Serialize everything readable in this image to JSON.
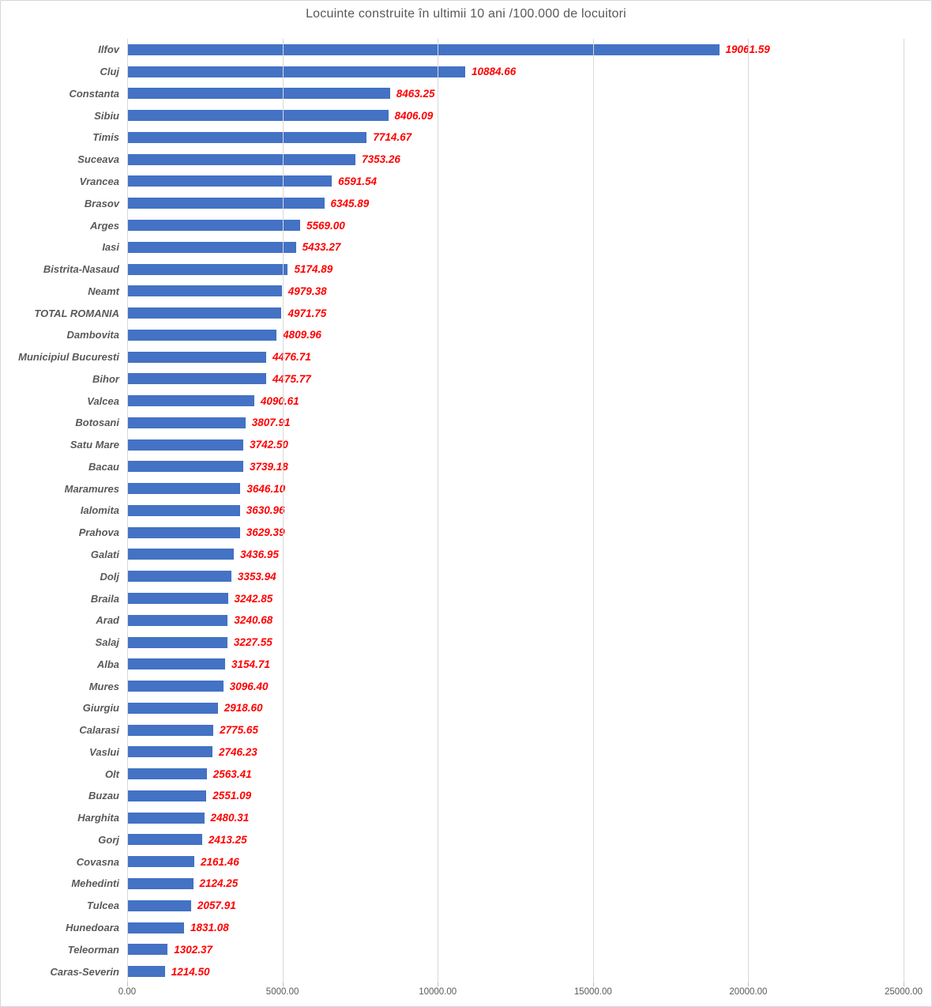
{
  "title": "Locuinte construite în ultimii 10 ani /100.000 de locuitori",
  "colors": {
    "bar": "#4472c4",
    "value_label": "#ff0000",
    "category_label": "#595959",
    "title_text": "#595959",
    "gridline": "#d9d9d9",
    "chart_border": "#d7d7d7"
  },
  "chart_data": {
    "type": "bar",
    "orientation": "horizontal",
    "title": "Locuinte construite în ultimii 10 ani /100.000 de locuitori",
    "xlabel": "",
    "ylabel": "",
    "xlim": [
      0,
      25000
    ],
    "grid": true,
    "x_ticks": [
      {
        "value": 0,
        "label": "0.00"
      },
      {
        "value": 5000,
        "label": "5000.00"
      },
      {
        "value": 10000,
        "label": "10000.00"
      },
      {
        "value": 15000,
        "label": "15000.00"
      },
      {
        "value": 20000,
        "label": "20000.00"
      },
      {
        "value": 25000,
        "label": "25000.00"
      }
    ],
    "categories": [
      "Ilfov",
      "Cluj",
      "Constanta",
      "Sibiu",
      "Timis",
      "Suceava",
      "Vrancea",
      "Brasov",
      "Arges",
      "Iasi",
      "Bistrita-Nasaud",
      "Neamt",
      "TOTAL ROMANIA",
      "Dambovita",
      "Municipiul Bucuresti",
      "Bihor",
      "Valcea",
      "Botosani",
      "Satu Mare",
      "Bacau",
      "Maramures",
      "Ialomita",
      "Prahova",
      "Galati",
      "Dolj",
      "Braila",
      "Arad",
      "Salaj",
      "Alba",
      "Mures",
      "Giurgiu",
      "Calarasi",
      "Vaslui",
      "Olt",
      "Buzau",
      "Harghita",
      "Gorj",
      "Covasna",
      "Mehedinti",
      "Tulcea",
      "Hunedoara",
      "Teleorman",
      "Caras-Severin"
    ],
    "values": [
      19061.59,
      10884.66,
      8463.25,
      8406.09,
      7714.67,
      7353.26,
      6591.54,
      6345.89,
      5569.0,
      5433.27,
      5174.89,
      4979.38,
      4971.75,
      4809.96,
      4476.71,
      4475.77,
      4090.61,
      3807.91,
      3742.5,
      3739.18,
      3646.1,
      3630.96,
      3629.39,
      3436.95,
      3353.94,
      3242.85,
      3240.68,
      3227.55,
      3154.71,
      3096.4,
      2918.6,
      2775.65,
      2746.23,
      2563.41,
      2551.09,
      2480.31,
      2413.25,
      2161.46,
      2124.25,
      2057.91,
      1831.08,
      1302.37,
      1214.5
    ],
    "value_labels": [
      "19061.59",
      "10884.66",
      "8463.25",
      "8406.09",
      "7714.67",
      "7353.26",
      "6591.54",
      "6345.89",
      "5569.00",
      "5433.27",
      "5174.89",
      "4979.38",
      "4971.75",
      "4809.96",
      "4476.71",
      "4475.77",
      "4090.61",
      "3807.91",
      "3742.50",
      "3739.18",
      "3646.10",
      "3630.96",
      "3629.39",
      "3436.95",
      "3353.94",
      "3242.85",
      "3240.68",
      "3227.55",
      "3154.71",
      "3096.40",
      "2918.60",
      "2775.65",
      "2746.23",
      "2563.41",
      "2551.09",
      "2480.31",
      "2413.25",
      "2161.46",
      "2124.25",
      "2057.91",
      "1831.08",
      "1302.37",
      "1214.50"
    ]
  }
}
